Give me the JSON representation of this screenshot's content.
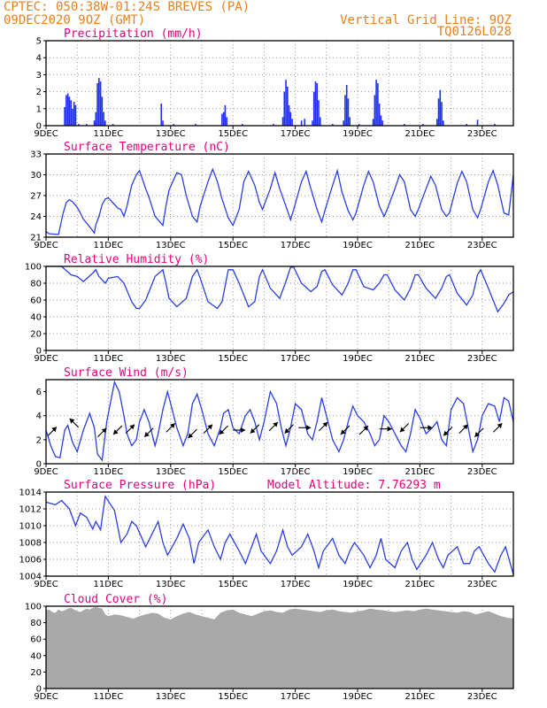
{
  "header": {
    "line1": "CPTEC:   050:38W-01:24S   BREVES (PA)",
    "line2": "09DEC2020 9OZ (GMT)",
    "right1": "Vertical Grid Line: 9OZ",
    "right2": "TQ0126L028",
    "model_altitude": "Model Altitude: 7.76293 m"
  },
  "colors": {
    "header": "#e8801c",
    "title": "#e6007e",
    "line": "#2a3fe0",
    "bar": "#1f2ff0",
    "cloud": "#a9a9a9",
    "grid": "#9a9a9a"
  },
  "x_ticks": [
    "9DEC",
    "11DEC",
    "13DEC",
    "15DEC",
    "17DEC",
    "19DEC",
    "21DEC",
    "23DEC"
  ],
  "x_range_days": [
    0,
    15
  ],
  "chart_data": [
    {
      "type": "bar",
      "title": "Precipitation (mm/h)",
      "ylim": [
        0,
        5
      ],
      "yticks": [
        "0",
        "1",
        "2",
        "3",
        "4",
        "5"
      ],
      "values": [
        [
          0.6,
          1.1
        ],
        [
          0.65,
          1.8
        ],
        [
          0.7,
          1.9
        ],
        [
          0.75,
          1.7
        ],
        [
          0.8,
          1.5
        ],
        [
          0.85,
          1.0
        ],
        [
          0.9,
          1.4
        ],
        [
          0.95,
          1.2
        ],
        [
          1.05,
          0.1
        ],
        [
          1.3,
          0.1
        ],
        [
          1.55,
          0.3
        ],
        [
          1.6,
          0.8
        ],
        [
          1.65,
          2.5
        ],
        [
          1.7,
          2.8
        ],
        [
          1.75,
          2.6
        ],
        [
          1.8,
          1.7
        ],
        [
          1.85,
          0.8
        ],
        [
          1.9,
          0.3
        ],
        [
          2.15,
          0.1
        ],
        [
          3.7,
          1.3
        ],
        [
          3.75,
          0.3
        ],
        [
          4.1,
          0.1
        ],
        [
          4.8,
          0.1
        ],
        [
          5.65,
          0.7
        ],
        [
          5.7,
          0.8
        ],
        [
          5.75,
          1.2
        ],
        [
          5.8,
          0.5
        ],
        [
          6.3,
          0.1
        ],
        [
          7.3,
          0.1
        ],
        [
          7.6,
          0.5
        ],
        [
          7.65,
          2.0
        ],
        [
          7.7,
          2.7
        ],
        [
          7.75,
          2.3
        ],
        [
          7.8,
          1.2
        ],
        [
          7.85,
          0.8
        ],
        [
          7.9,
          0.4
        ],
        [
          8.2,
          0.3
        ],
        [
          8.3,
          0.4
        ],
        [
          8.55,
          0.3
        ],
        [
          8.6,
          2.0
        ],
        [
          8.65,
          2.6
        ],
        [
          8.7,
          2.5
        ],
        [
          8.75,
          1.5
        ],
        [
          8.8,
          0.5
        ],
        [
          9.2,
          0.1
        ],
        [
          9.55,
          0.3
        ],
        [
          9.6,
          1.8
        ],
        [
          9.65,
          2.4
        ],
        [
          9.7,
          1.6
        ],
        [
          9.75,
          0.5
        ],
        [
          10.05,
          0.1
        ],
        [
          10.5,
          0.4
        ],
        [
          10.55,
          1.8
        ],
        [
          10.6,
          2.7
        ],
        [
          10.65,
          2.5
        ],
        [
          10.7,
          1.3
        ],
        [
          10.75,
          0.6
        ],
        [
          10.8,
          0.3
        ],
        [
          11.5,
          0.1
        ],
        [
          12.1,
          0.1
        ],
        [
          12.55,
          0.4
        ],
        [
          12.6,
          1.6
        ],
        [
          12.65,
          2.1
        ],
        [
          12.7,
          1.4
        ],
        [
          12.75,
          0.3
        ],
        [
          13.5,
          0.1
        ],
        [
          13.85,
          0.35
        ],
        [
          14.4,
          0.1
        ]
      ]
    },
    {
      "type": "line",
      "title": "Surface Temperature (nC)",
      "ylim": [
        21,
        33
      ],
      "yticks": [
        "21",
        "24",
        "27",
        "30",
        "33"
      ],
      "x": [
        0,
        0.1,
        0.4,
        0.55,
        0.65,
        0.75,
        0.85,
        1.0,
        1.1,
        1.2,
        1.4,
        1.5,
        1.55,
        1.6,
        1.7,
        1.8,
        1.9,
        2.0,
        2.1,
        2.3,
        2.4,
        2.5,
        2.6,
        2.75,
        2.9,
        3.0,
        3.2,
        3.3,
        3.5,
        3.75,
        3.85,
        3.95,
        4.2,
        4.35,
        4.5,
        4.7,
        4.85,
        4.95,
        5.2,
        5.35,
        5.5,
        5.65,
        5.85,
        6.0,
        6.2,
        6.35,
        6.5,
        6.7,
        6.85,
        6.95,
        7.2,
        7.35,
        7.5,
        7.7,
        7.85,
        7.95,
        8.2,
        8.35,
        8.5,
        8.7,
        8.85,
        8.95,
        9.2,
        9.35,
        9.5,
        9.7,
        9.85,
        9.95,
        10.2,
        10.35,
        10.5,
        10.7,
        10.85,
        10.95,
        11.2,
        11.35,
        11.5,
        11.7,
        11.85,
        11.95,
        12.2,
        12.35,
        12.5,
        12.7,
        12.85,
        12.95,
        13.2,
        13.35,
        13.5,
        13.7,
        13.85,
        13.95,
        14.2,
        14.35,
        14.5,
        14.7,
        14.85,
        15.0
      ],
      "values": [
        21.8,
        21.5,
        21.4,
        24.5,
        26.0,
        26.4,
        26.1,
        25.3,
        24.5,
        23.6,
        22.5,
        21.9,
        21.6,
        22.8,
        24.0,
        25.7,
        26.5,
        26.7,
        26.2,
        25.2,
        25.0,
        24.0,
        25.5,
        28.5,
        30.0,
        30.6,
        28.0,
        26.8,
        24.0,
        22.7,
        25.5,
        27.8,
        30.3,
        30.0,
        27.0,
        24.0,
        23.2,
        25.5,
        29.0,
        30.8,
        29.0,
        26.5,
        23.8,
        22.7,
        25.0,
        29.0,
        30.5,
        28.5,
        26.0,
        25.0,
        28.0,
        30.3,
        28.0,
        25.5,
        23.5,
        25.0,
        29.0,
        30.5,
        28.0,
        25.0,
        23.2,
        24.8,
        28.5,
        30.6,
        27.5,
        24.8,
        23.5,
        24.5,
        28.5,
        30.5,
        29.0,
        25.5,
        24.0,
        25.0,
        28.0,
        30.0,
        29.0,
        25.0,
        24.0,
        25.0,
        28.0,
        29.8,
        28.5,
        25.0,
        24.0,
        24.5,
        28.8,
        30.5,
        29.0,
        25.0,
        23.8,
        25.0,
        29.0,
        30.6,
        28.5,
        24.5,
        24.2,
        30.0
      ]
    },
    {
      "type": "line",
      "title": "Relative Humidity (%)",
      "ylim": [
        0,
        100
      ],
      "yticks": [
        "0",
        "20",
        "40",
        "60",
        "80",
        "100"
      ],
      "x": [
        0,
        0.3,
        0.5,
        0.8,
        1.0,
        1.2,
        1.5,
        1.6,
        1.7,
        1.9,
        2.0,
        2.3,
        2.5,
        2.75,
        2.9,
        3.0,
        3.2,
        3.5,
        3.75,
        3.85,
        3.95,
        4.2,
        4.5,
        4.7,
        4.85,
        4.95,
        5.2,
        5.5,
        5.65,
        5.85,
        6.0,
        6.2,
        6.5,
        6.7,
        6.85,
        6.95,
        7.2,
        7.5,
        7.7,
        7.85,
        7.95,
        8.2,
        8.5,
        8.7,
        8.85,
        8.95,
        9.2,
        9.5,
        9.7,
        9.85,
        9.95,
        10.2,
        10.5,
        10.7,
        10.85,
        10.95,
        11.2,
        11.5,
        11.7,
        11.85,
        11.95,
        12.2,
        12.5,
        12.7,
        12.85,
        12.95,
        13.2,
        13.5,
        13.7,
        13.85,
        13.95,
        14.2,
        14.5,
        14.7,
        14.85,
        15.0
      ],
      "values": [
        100,
        100,
        100,
        90,
        88,
        82,
        92,
        96,
        88,
        80,
        86,
        88,
        80,
        58,
        50,
        50,
        60,
        88,
        96,
        80,
        62,
        52,
        62,
        88,
        96,
        86,
        58,
        50,
        58,
        96,
        96,
        80,
        52,
        58,
        88,
        96,
        74,
        62,
        82,
        99,
        99,
        80,
        70,
        76,
        94,
        96,
        78,
        66,
        80,
        96,
        96,
        76,
        72,
        80,
        90,
        90,
        72,
        60,
        74,
        90,
        90,
        74,
        62,
        74,
        88,
        90,
        68,
        54,
        66,
        90,
        96,
        74,
        46,
        56,
        66,
        70
      ]
    },
    {
      "type": "line",
      "title": "Surface Wind (m/s)",
      "ylim": [
        0,
        7
      ],
      "yticks": [
        "0",
        "2",
        "4",
        "6"
      ],
      "x": [
        0,
        0.15,
        0.3,
        0.45,
        0.6,
        0.7,
        0.85,
        1.0,
        1.2,
        1.4,
        1.55,
        1.65,
        1.8,
        1.95,
        2.1,
        2.2,
        2.35,
        2.5,
        2.6,
        2.75,
        2.9,
        3.0,
        3.15,
        3.3,
        3.5,
        3.6,
        3.75,
        3.9,
        4.0,
        4.2,
        4.4,
        4.55,
        4.7,
        4.85,
        5.0,
        5.2,
        5.4,
        5.6,
        5.7,
        5.85,
        6.0,
        6.2,
        6.4,
        6.55,
        6.7,
        6.85,
        7.0,
        7.2,
        7.4,
        7.55,
        7.7,
        7.85,
        8.0,
        8.2,
        8.4,
        8.55,
        8.7,
        8.85,
        9.0,
        9.2,
        9.4,
        9.55,
        9.7,
        9.85,
        10.0,
        10.2,
        10.4,
        10.55,
        10.7,
        10.85,
        11.0,
        11.2,
        11.4,
        11.55,
        11.7,
        11.85,
        12.0,
        12.2,
        12.4,
        12.55,
        12.7,
        12.85,
        13.0,
        13.2,
        13.4,
        13.55,
        13.7,
        13.85,
        14.0,
        14.2,
        14.4,
        14.55,
        14.7,
        14.85,
        15.0
      ],
      "values": [
        2.8,
        1.5,
        0.6,
        0.5,
        2.8,
        3.2,
        1.8,
        1.0,
        2.8,
        4.2,
        3.0,
        0.8,
        0.3,
        3.5,
        5.5,
        6.8,
        6.0,
        4.0,
        2.5,
        1.5,
        2.0,
        3.5,
        4.5,
        3.5,
        1.5,
        2.5,
        4.5,
        6.0,
        5.0,
        3.0,
        1.5,
        2.5,
        5.0,
        5.8,
        4.5,
        2.5,
        1.5,
        3.0,
        4.2,
        4.5,
        3.0,
        2.5,
        4.0,
        4.5,
        3.5,
        2.0,
        3.5,
        6.0,
        5.0,
        3.0,
        1.5,
        3.0,
        5.0,
        4.5,
        2.5,
        2.0,
        3.5,
        5.5,
        4.0,
        2.0,
        1.0,
        2.0,
        3.5,
        4.8,
        4.0,
        3.5,
        2.5,
        1.5,
        2.0,
        4.0,
        3.5,
        2.5,
        1.5,
        1.0,
        2.5,
        4.5,
        3.8,
        2.5,
        3.0,
        3.5,
        2.0,
        1.5,
        4.5,
        5.5,
        5.0,
        3.0,
        1.0,
        2.0,
        4.0,
        5.0,
        4.8,
        3.5,
        5.5,
        5.2,
        3.5
      ],
      "arrows": [
        [
          0.2,
          2.7,
          "ne"
        ],
        [
          0.9,
          3.4,
          "nw"
        ],
        [
          1.8,
          2.6,
          "ne"
        ],
        [
          2.3,
          2.8,
          "sw"
        ],
        [
          2.7,
          2.9,
          "ne"
        ],
        [
          3.3,
          2.6,
          "sw"
        ],
        [
          4.0,
          3.0,
          "ne"
        ],
        [
          4.7,
          2.5,
          "sw"
        ],
        [
          5.2,
          2.9,
          "ne"
        ],
        [
          5.7,
          2.8,
          "sw"
        ],
        [
          6.2,
          2.8,
          "e"
        ],
        [
          6.7,
          2.9,
          "sw"
        ],
        [
          7.3,
          3.1,
          "ne"
        ],
        [
          7.8,
          2.9,
          "sw"
        ],
        [
          8.3,
          3.0,
          "e"
        ],
        [
          8.9,
          3.1,
          "ne"
        ],
        [
          9.6,
          2.8,
          "sw"
        ],
        [
          10.2,
          2.8,
          "ne"
        ],
        [
          10.9,
          2.9,
          "e"
        ],
        [
          11.5,
          3.0,
          "sw"
        ],
        [
          12.2,
          3.0,
          "e"
        ],
        [
          12.9,
          2.7,
          "sw"
        ],
        [
          13.4,
          2.9,
          "ne"
        ],
        [
          13.9,
          2.6,
          "sw"
        ],
        [
          14.5,
          3.0,
          "ne"
        ]
      ]
    },
    {
      "type": "line",
      "title": "Surface Pressure (hPa)",
      "ylim": [
        1004,
        1014
      ],
      "yticks": [
        "1004",
        "1006",
        "1008",
        "1010",
        "1012",
        "1014"
      ],
      "x": [
        0,
        0.3,
        0.5,
        0.75,
        0.95,
        1.1,
        1.3,
        1.5,
        1.6,
        1.75,
        1.9,
        2.2,
        2.4,
        2.6,
        2.75,
        2.9,
        3.2,
        3.4,
        3.6,
        3.75,
        3.9,
        4.2,
        4.4,
        4.6,
        4.75,
        4.9,
        5.2,
        5.4,
        5.6,
        5.75,
        5.9,
        6.2,
        6.4,
        6.6,
        6.75,
        6.9,
        7.2,
        7.4,
        7.6,
        7.75,
        7.9,
        8.2,
        8.4,
        8.6,
        8.75,
        8.9,
        9.2,
        9.4,
        9.6,
        9.75,
        9.9,
        10.2,
        10.4,
        10.6,
        10.75,
        10.9,
        11.2,
        11.4,
        11.6,
        11.75,
        11.9,
        12.2,
        12.4,
        12.6,
        12.75,
        12.9,
        13.2,
        13.4,
        13.6,
        13.75,
        13.9,
        14.2,
        14.4,
        14.6,
        14.75,
        14.9,
        15.0
      ],
      "values": [
        1012.8,
        1012.5,
        1013.0,
        1012.0,
        1010.0,
        1011.5,
        1011.0,
        1009.6,
        1010.5,
        1009.5,
        1013.5,
        1011.8,
        1008.0,
        1009.0,
        1010.5,
        1010.0,
        1007.5,
        1009.0,
        1010.5,
        1008.0,
        1006.5,
        1008.5,
        1010.2,
        1008.5,
        1005.5,
        1008.0,
        1009.5,
        1007.5,
        1006.0,
        1008.0,
        1009.0,
        1007.0,
        1005.5,
        1007.5,
        1009.0,
        1007.0,
        1005.5,
        1007.0,
        1009.5,
        1007.5,
        1006.5,
        1007.5,
        1009.0,
        1007.0,
        1005.0,
        1007.0,
        1008.5,
        1006.5,
        1005.5,
        1007.0,
        1008.0,
        1006.5,
        1005.0,
        1006.5,
        1008.5,
        1006.0,
        1005.0,
        1007.0,
        1008.0,
        1006.0,
        1004.8,
        1006.5,
        1008.0,
        1006.0,
        1005.0,
        1006.5,
        1007.5,
        1005.5,
        1005.5,
        1007.0,
        1007.5,
        1005.5,
        1004.5,
        1006.5,
        1007.5,
        1005.5,
        1004.2
      ]
    },
    {
      "type": "area",
      "title": "Cloud Cover (%)",
      "ylim": [
        0,
        100
      ],
      "yticks": [
        "0",
        "20",
        "40",
        "60",
        "80",
        "100"
      ],
      "x": [
        0,
        0.1,
        0.2,
        0.3,
        0.4,
        0.5,
        0.6,
        0.7,
        0.8,
        0.9,
        1.0,
        1.1,
        1.2,
        1.3,
        1.4,
        1.5,
        1.6,
        1.7,
        1.8,
        1.9,
        2.0,
        2.2,
        2.4,
        2.6,
        2.8,
        3.0,
        3.2,
        3.4,
        3.6,
        3.8,
        4.0,
        4.2,
        4.4,
        4.6,
        4.8,
        5.0,
        5.2,
        5.4,
        5.6,
        5.8,
        6.0,
        6.2,
        6.4,
        6.6,
        6.8,
        7.0,
        7.2,
        7.4,
        7.6,
        7.8,
        8.0,
        8.2,
        8.4,
        8.6,
        8.8,
        9.0,
        9.2,
        9.4,
        9.6,
        9.8,
        10.0,
        10.2,
        10.4,
        10.6,
        10.8,
        11.0,
        11.2,
        11.4,
        11.6,
        11.8,
        12.0,
        12.2,
        12.4,
        12.6,
        12.8,
        13.0,
        13.2,
        13.4,
        13.6,
        13.8,
        14.0,
        14.2,
        14.4,
        14.6,
        14.8,
        15.0
      ],
      "values": [
        95,
        96,
        93,
        92,
        96,
        94,
        95,
        97,
        98,
        96,
        94,
        93,
        95,
        97,
        96,
        98,
        99,
        98,
        97,
        90,
        88,
        90,
        89,
        87,
        85,
        88,
        90,
        92,
        91,
        86,
        84,
        88,
        91,
        93,
        90,
        88,
        86,
        84,
        92,
        95,
        96,
        92,
        90,
        88,
        91,
        94,
        95,
        93,
        92,
        96,
        97,
        96,
        95,
        94,
        93,
        95,
        96,
        94,
        93,
        92,
        94,
        95,
        97,
        96,
        95,
        94,
        93,
        94,
        95,
        94,
        96,
        97,
        96,
        95,
        94,
        93,
        92,
        94,
        93,
        90,
        92,
        94,
        91,
        88,
        86,
        85
      ]
    }
  ]
}
